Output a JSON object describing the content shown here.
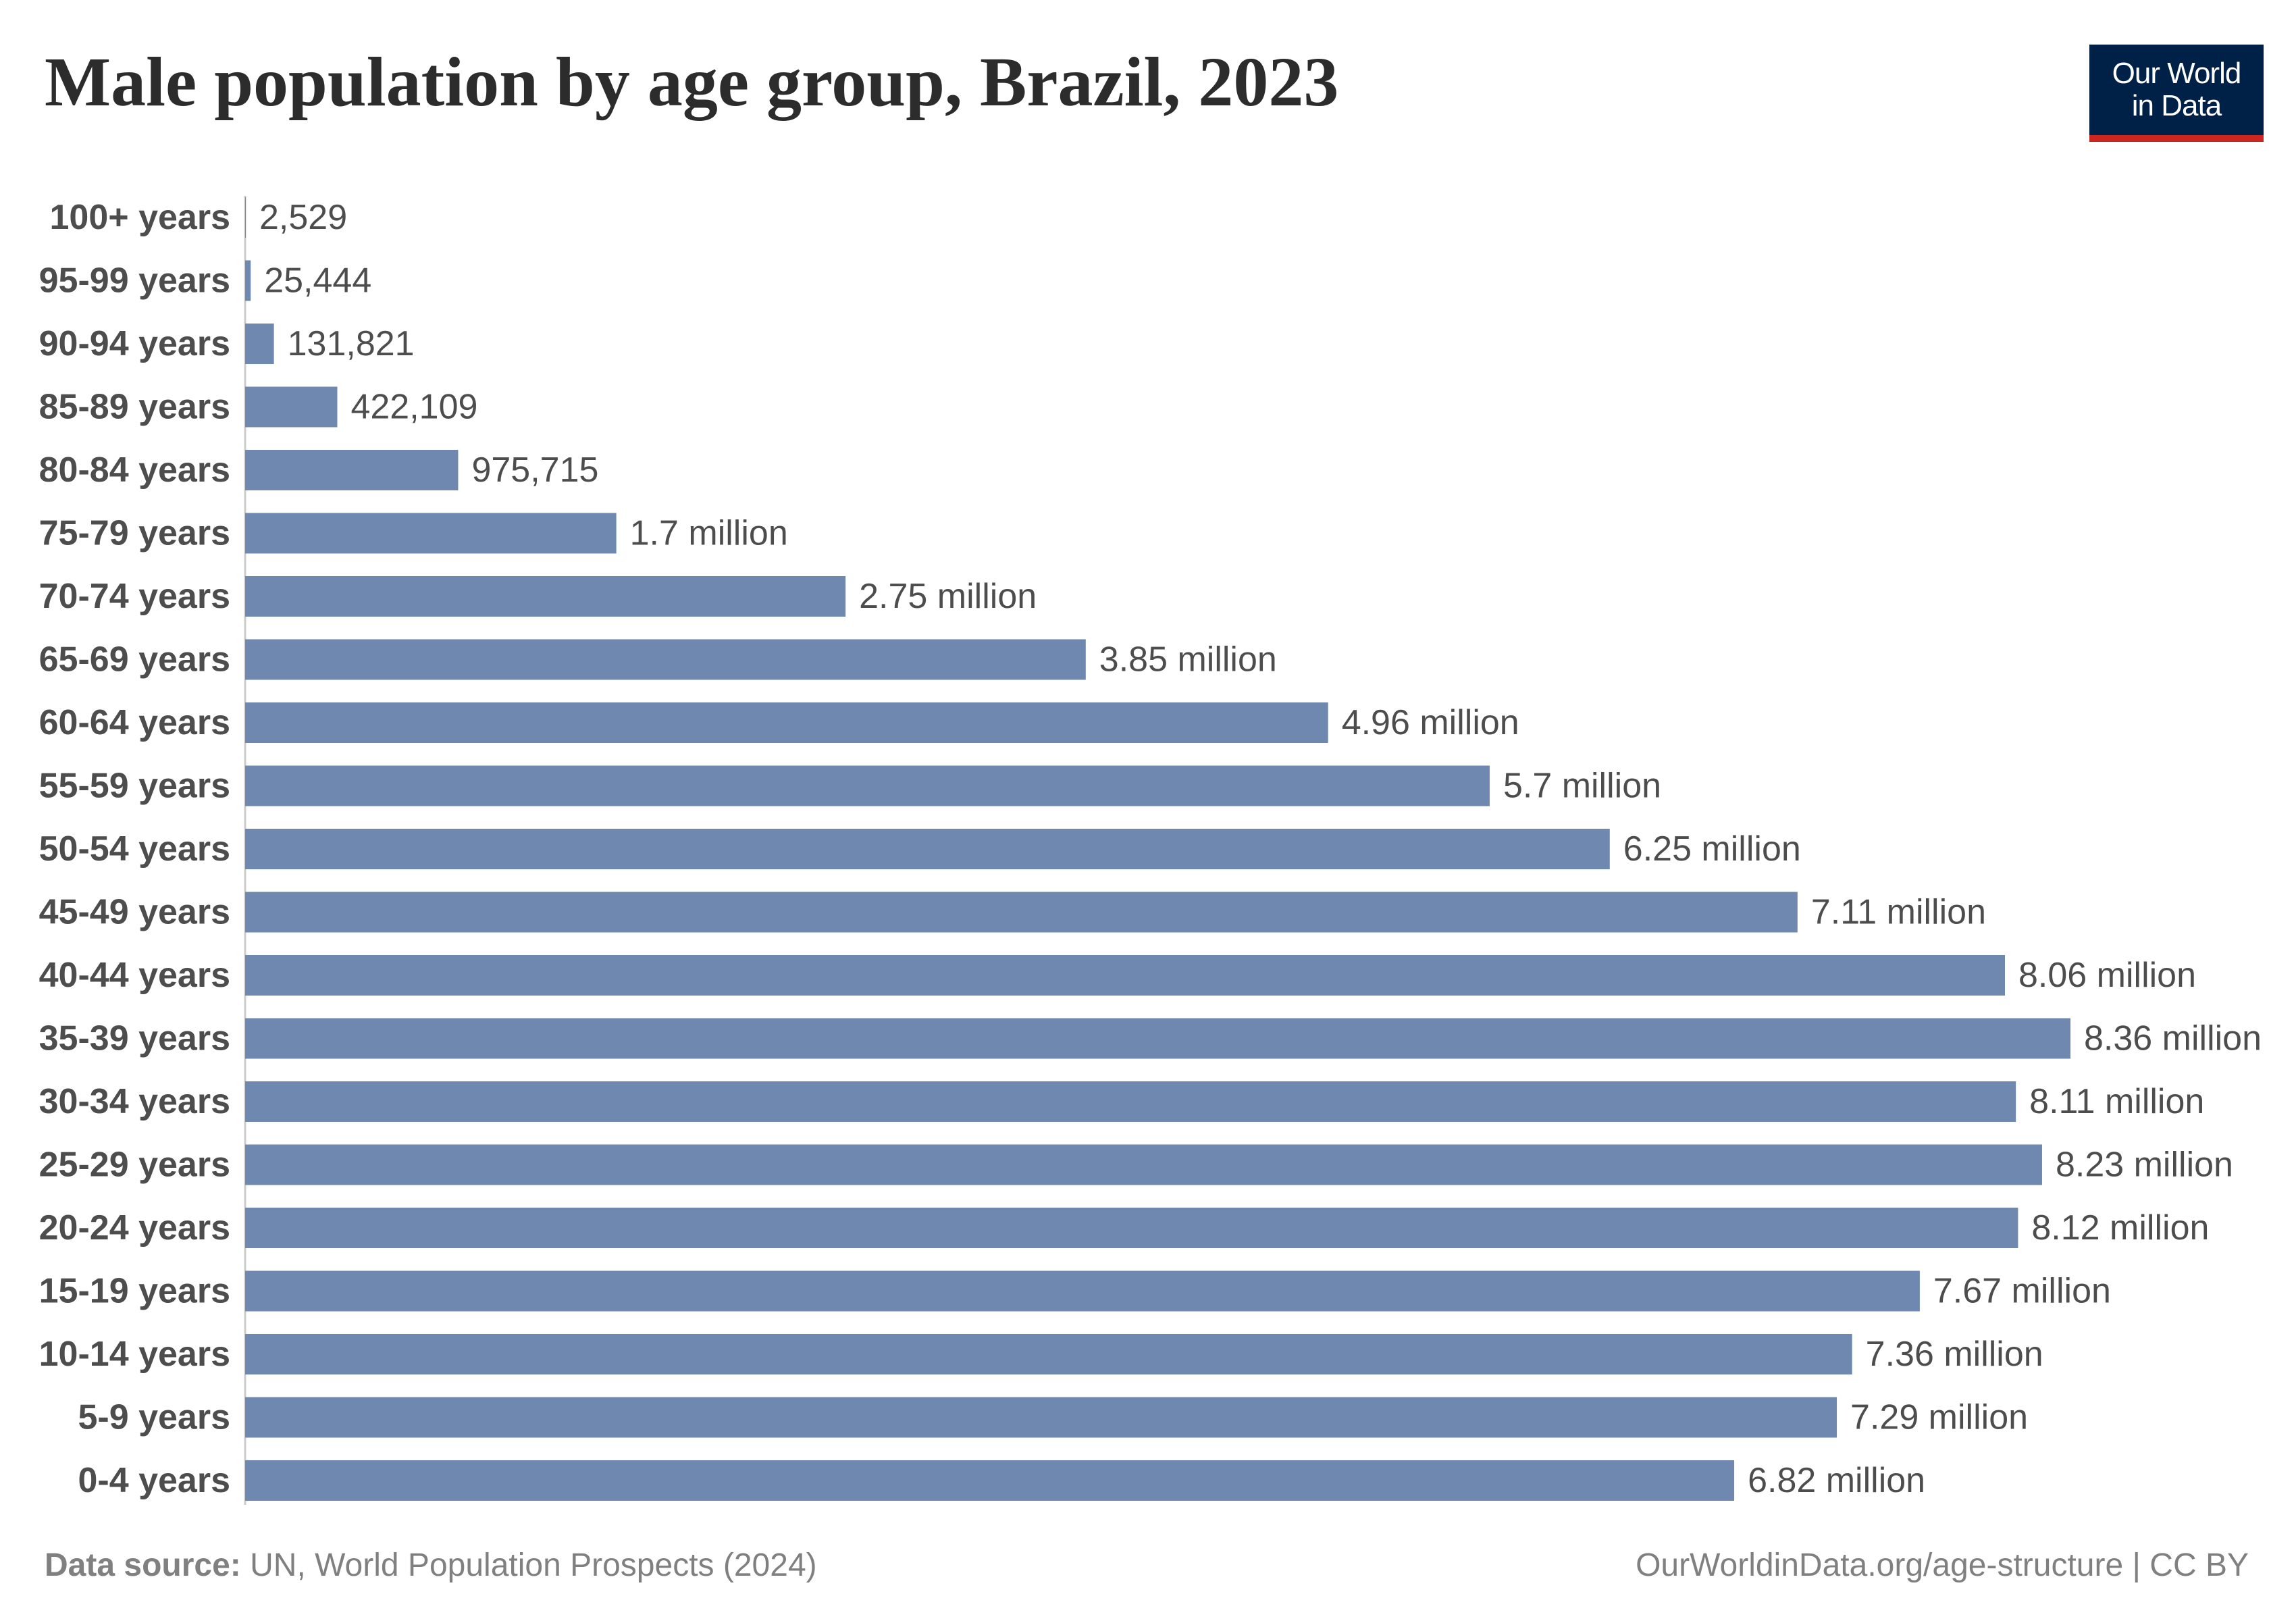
{
  "title": "Male population by age group, Brazil, 2023",
  "logo": {
    "line1": "Our World",
    "line2": "in Data",
    "bg_color": "#002147",
    "accent_color": "#ce261e"
  },
  "footer": {
    "source_label": "Data source:",
    "source_text": "UN, World Population Prospects (2024)",
    "link_text": "OurWorldinData.org/age-structure | CC BY"
  },
  "colors": {
    "bar": "#6f88b0",
    "text": "#4d4d4d",
    "title": "#2c2c2c",
    "footer": "#808080"
  },
  "chart_data": {
    "type": "bar",
    "orientation": "horizontal",
    "title": "Male population by age group, Brazil, 2023",
    "xlabel": "",
    "ylabel": "",
    "grid": false,
    "legend": "none",
    "categories": [
      "100+ years",
      "95-99 years",
      "90-94 years",
      "85-89 years",
      "80-84 years",
      "75-79 years",
      "70-74 years",
      "65-69 years",
      "60-64 years",
      "55-59 years",
      "50-54 years",
      "45-49 years",
      "40-44 years",
      "35-39 years",
      "30-34 years",
      "25-29 years",
      "20-24 years",
      "15-19 years",
      "10-14 years",
      "5-9 years",
      "0-4 years"
    ],
    "values": [
      2529,
      25444,
      131821,
      422109,
      975715,
      1700000,
      2750000,
      3850000,
      4960000,
      5700000,
      6250000,
      7110000,
      8060000,
      8360000,
      8110000,
      8230000,
      8120000,
      7670000,
      7360000,
      7290000,
      6820000
    ],
    "value_labels": [
      "2,529",
      "25,444",
      "131,821",
      "422,109",
      "975,715",
      "1.7 million",
      "2.75 million",
      "3.85 million",
      "4.96 million",
      "5.7 million",
      "6.25 million",
      "7.11 million",
      "8.06 million",
      "8.36 million",
      "8.11 million",
      "8.23 million",
      "8.12 million",
      "7.67 million",
      "7.36 million",
      "7.29 million",
      "6.82 million"
    ]
  }
}
